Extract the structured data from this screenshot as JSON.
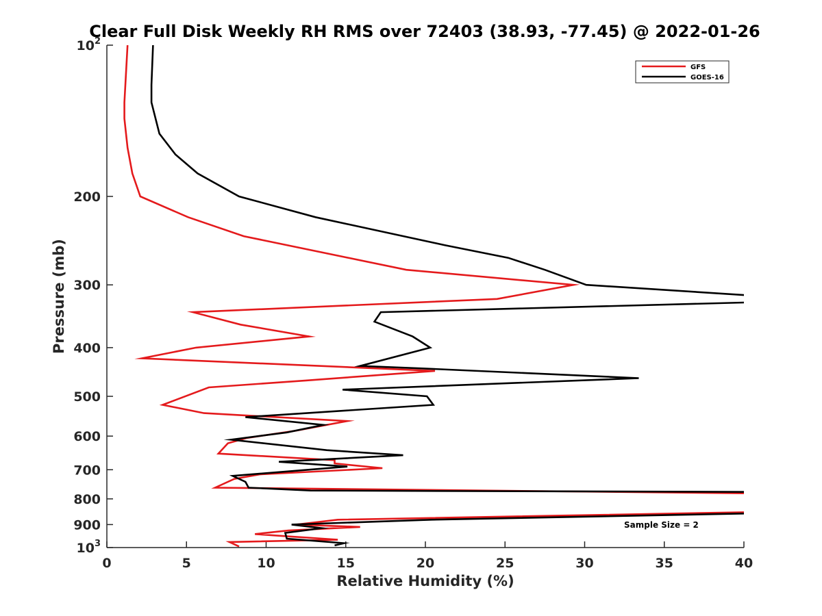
{
  "chart_data": {
    "type": "line",
    "title": "Clear Full Disk Weekly RH RMS over 72403 (38.93, -77.45) @ 2022-01-26",
    "xlabel": "Relative Humidity (%)",
    "ylabel": "Pressure (mb)",
    "xlim": [
      0,
      40
    ],
    "ylim": [
      100,
      1000
    ],
    "yscale": "log",
    "y_reversed": true,
    "grid": false,
    "legend_position": "top-right",
    "x_ticks": [
      0,
      5,
      10,
      15,
      20,
      25,
      30,
      35,
      40
    ],
    "x_tick_labels": [
      "0",
      "5",
      "10",
      "15",
      "20",
      "25",
      "30",
      "35",
      "40"
    ],
    "y_ticks": [
      100,
      200,
      300,
      400,
      500,
      600,
      700,
      800,
      900,
      1000
    ],
    "y_tick_labels": [
      {
        "base": "10",
        "exp": "2"
      },
      {
        "base": "200",
        "exp": ""
      },
      {
        "base": "300",
        "exp": ""
      },
      {
        "base": "400",
        "exp": ""
      },
      {
        "base": "500",
        "exp": ""
      },
      {
        "base": "600",
        "exp": ""
      },
      {
        "base": "700",
        "exp": ""
      },
      {
        "base": "800",
        "exp": ""
      },
      {
        "base": "900",
        "exp": ""
      },
      {
        "base": "10",
        "exp": "3"
      }
    ],
    "series": [
      {
        "name": "GFS",
        "color": "#e41a1c",
        "points": [
          [
            1.3,
            100
          ],
          [
            1.1,
            130
          ],
          [
            1.1,
            140
          ],
          [
            1.3,
            160
          ],
          [
            1.6,
            180
          ],
          [
            2.1,
            200
          ],
          [
            5.1,
            220
          ],
          [
            8.6,
            240
          ],
          [
            18.8,
            280
          ],
          [
            29.3,
            300
          ],
          [
            24.5,
            320
          ],
          [
            5.4,
            340
          ],
          [
            8.4,
            360
          ],
          [
            12.7,
            380
          ],
          [
            5.6,
            400
          ],
          [
            2.2,
            420
          ],
          [
            20.6,
            445
          ],
          [
            12.5,
            465
          ],
          [
            6.4,
            480
          ],
          [
            3.5,
            520
          ],
          [
            6.1,
            540
          ],
          [
            15.1,
            560
          ],
          [
            11.9,
            585
          ],
          [
            8.8,
            605
          ],
          [
            7.6,
            620
          ],
          [
            7.0,
            650
          ],
          [
            14.3,
            670
          ],
          [
            14.3,
            680
          ],
          [
            17.3,
            695
          ],
          [
            9.6,
            715
          ],
          [
            8.0,
            730
          ],
          [
            6.8,
            760
          ],
          [
            40.5,
            780
          ],
          [
            40.5,
            850
          ],
          [
            14.5,
            880
          ],
          [
            11.9,
            900
          ],
          [
            15.9,
            910
          ],
          [
            11.4,
            925
          ],
          [
            9.3,
            940
          ],
          [
            14.5,
            965
          ],
          [
            7.7,
            975
          ],
          [
            8.3,
            995
          ]
        ]
      },
      {
        "name": "GOES-16",
        "color": "#000000",
        "points": [
          [
            2.9,
            100
          ],
          [
            2.8,
            120
          ],
          [
            2.8,
            130
          ],
          [
            3.3,
            150
          ],
          [
            4.3,
            165
          ],
          [
            5.7,
            180
          ],
          [
            8.3,
            200
          ],
          [
            13.1,
            220
          ],
          [
            21.2,
            250
          ],
          [
            25.2,
            265
          ],
          [
            27.5,
            280
          ],
          [
            30.1,
            300
          ],
          [
            40.5,
            315
          ],
          [
            40.5,
            325
          ],
          [
            17.2,
            340
          ],
          [
            16.8,
            355
          ],
          [
            19.2,
            380
          ],
          [
            20.3,
            400
          ],
          [
            15.9,
            435
          ],
          [
            19.8,
            440
          ],
          [
            33.4,
            460
          ],
          [
            14.8,
            485
          ],
          [
            20.1,
            500
          ],
          [
            20.5,
            520
          ],
          [
            8.7,
            550
          ],
          [
            13.6,
            570
          ],
          [
            11.3,
            590
          ],
          [
            7.8,
            610
          ],
          [
            13.8,
            640
          ],
          [
            18.6,
            655
          ],
          [
            10.8,
            675
          ],
          [
            15.1,
            690
          ],
          [
            7.9,
            720
          ],
          [
            8.7,
            740
          ],
          [
            8.9,
            760
          ],
          [
            12.8,
            770
          ],
          [
            40.5,
            775
          ],
          [
            40.5,
            855
          ],
          [
            20.4,
            880
          ],
          [
            11.6,
            900
          ],
          [
            13.5,
            915
          ],
          [
            11.2,
            935
          ],
          [
            11.3,
            960
          ],
          [
            14.9,
            980
          ],
          [
            14.3,
            990
          ]
        ]
      }
    ],
    "annotations": [
      {
        "text": "Sample Size = 2"
      }
    ]
  }
}
